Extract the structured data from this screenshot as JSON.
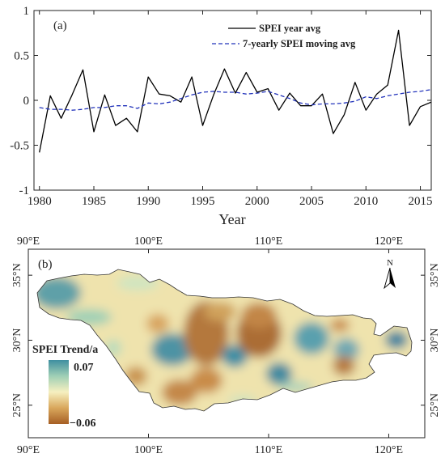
{
  "chart_data": [
    {
      "type": "line",
      "panel_label": "(a)",
      "xlabel": "Year",
      "ylabel": "",
      "xlim": [
        1979.5,
        2016
      ],
      "ylim": [
        -1,
        1
      ],
      "x_ticks": [
        1980,
        1985,
        1990,
        1995,
        2000,
        2005,
        2010,
        2015
      ],
      "y_ticks": [
        -1,
        -0.5,
        0,
        0.5,
        1
      ],
      "x_tick_labels": [
        "1980",
        "1985",
        "1990",
        "1995",
        "2000",
        "2005",
        "2010",
        "2015"
      ],
      "y_tick_labels": [
        "-1",
        "-0.5",
        "0",
        "0.5",
        "1"
      ],
      "legend_position": "top-right",
      "grid": false,
      "x": [
        1980,
        1981,
        1982,
        1983,
        1984,
        1985,
        1986,
        1987,
        1988,
        1989,
        1990,
        1991,
        1992,
        1993,
        1994,
        1995,
        1996,
        1997,
        1998,
        1999,
        2000,
        2001,
        2002,
        2003,
        2004,
        2005,
        2006,
        2007,
        2008,
        2009,
        2010,
        2011,
        2012,
        2013,
        2014,
        2015,
        2016
      ],
      "series": [
        {
          "name": "SPEI year avg",
          "color": "#000000",
          "style": "solid",
          "values": [
            -0.58,
            0.05,
            -0.2,
            0.06,
            0.34,
            -0.35,
            0.06,
            -0.28,
            -0.2,
            -0.35,
            0.26,
            0.07,
            0.05,
            -0.02,
            0.26,
            -0.28,
            0.06,
            0.35,
            0.08,
            0.31,
            0.09,
            0.13,
            -0.11,
            0.08,
            -0.06,
            -0.06,
            0.07,
            -0.37,
            -0.16,
            0.2,
            -0.11,
            0.07,
            0.17,
            0.78,
            -0.28,
            -0.07,
            -0.02
          ]
        },
        {
          "name": "7-yearly SPEI moving avg",
          "color": "#2233bb",
          "style": "dashed",
          "values": [
            -0.08,
            -0.1,
            -0.1,
            -0.11,
            -0.1,
            -0.08,
            -0.08,
            -0.06,
            -0.06,
            -0.09,
            -0.03,
            -0.04,
            -0.02,
            0.02,
            0.06,
            0.09,
            0.1,
            0.09,
            0.09,
            0.07,
            0.08,
            0.1,
            0.06,
            0.02,
            -0.03,
            -0.05,
            -0.04,
            -0.04,
            -0.03,
            -0.01,
            0.04,
            0.02,
            0.05,
            0.07,
            0.09,
            0.1,
            0.12
          ]
        }
      ]
    },
    {
      "type": "heatmap",
      "panel_label": "(b)",
      "xlim": [
        90,
        123
      ],
      "ylim": [
        22.5,
        37
      ],
      "x_ticks": [
        90,
        100,
        110,
        120
      ],
      "y_ticks": [
        25,
        30,
        35
      ],
      "x_tick_labels": [
        "90°E",
        "100°E",
        "110°E",
        "120°E"
      ],
      "y_tick_labels": [
        "25°N",
        "30°N",
        "35°N"
      ],
      "colorbar": {
        "title": "SPEI Trend/a",
        "max_label": "0.07",
        "min_label": "−0.06",
        "max": 0.07,
        "min": -0.06,
        "colors": [
          "#a65f24",
          "#d9a75c",
          "#f6f0c0",
          "#9fcfb5",
          "#3f8fa0"
        ]
      },
      "north_arrow_label": "N"
    }
  ]
}
